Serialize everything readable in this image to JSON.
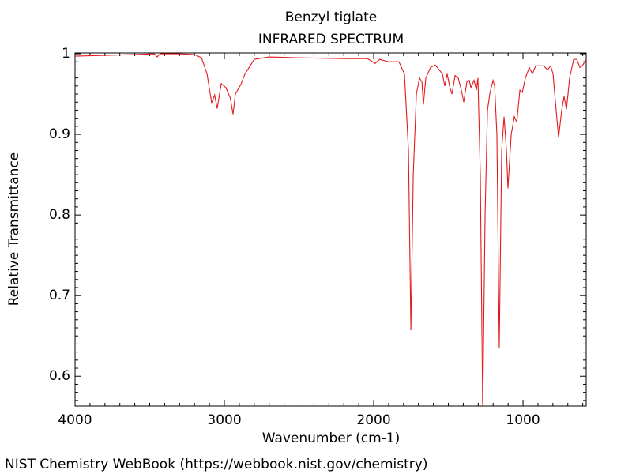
{
  "chart_data": {
    "type": "line",
    "title": "Benzyl tiglate",
    "subtitle": "INFRARED SPECTRUM",
    "x_label": "Wavenumber (cm-1)",
    "y_label": "Relative Transmittance",
    "source": "NIST Chemistry WebBook (https://webbook.nist.gov/chemistry)",
    "xlim": [
      4000,
      577
    ],
    "ylim": [
      0.563,
      1.001
    ],
    "xticks": [
      4000,
      3000,
      2000,
      1000
    ],
    "yticks": [
      0.6,
      0.7,
      0.8,
      0.9,
      1
    ],
    "series": [
      {
        "name": "Benzyl tiglate",
        "color": "#e31a1c",
        "x": [
          4000,
          3600,
          3470,
          3450,
          3430,
          3300,
          3200,
          3153,
          3116,
          3085,
          3065,
          3048,
          3021,
          2990,
          2960,
          2942,
          2926,
          2889,
          2862,
          2800,
          2700,
          2500,
          2200,
          2042,
          1990,
          1960,
          1900,
          1831,
          1794,
          1767,
          1751,
          1735,
          1714,
          1693,
          1677,
          1667,
          1651,
          1619,
          1587,
          1561,
          1540,
          1524,
          1508,
          1492,
          1476,
          1455,
          1434,
          1413,
          1397,
          1376,
          1360,
          1349,
          1328,
          1312,
          1302,
          1286,
          1270,
          1254,
          1238,
          1222,
          1201,
          1190,
          1175,
          1159,
          1143,
          1127,
          1111,
          1101,
          1079,
          1058,
          1042,
          1021,
          1005,
          984,
          958,
          937,
          915,
          862,
          836,
          815,
          799,
          783,
          762,
          741,
          725,
          709,
          688,
          661,
          640,
          619,
          603,
          577
        ],
        "values": [
          0.997,
          0.999,
          1.0,
          0.996,
          1.0,
          1.0,
          0.999,
          0.995,
          0.975,
          0.939,
          0.949,
          0.932,
          0.963,
          0.958,
          0.945,
          0.925,
          0.95,
          0.962,
          0.975,
          0.993,
          0.996,
          0.995,
          0.994,
          0.994,
          0.988,
          0.993,
          0.99,
          0.99,
          0.975,
          0.88,
          0.657,
          0.85,
          0.95,
          0.97,
          0.965,
          0.937,
          0.97,
          0.983,
          0.986,
          0.98,
          0.975,
          0.96,
          0.975,
          0.96,
          0.95,
          0.973,
          0.97,
          0.955,
          0.94,
          0.965,
          0.967,
          0.958,
          0.967,
          0.955,
          0.97,
          0.85,
          0.558,
          0.8,
          0.93,
          0.951,
          0.967,
          0.96,
          0.9,
          0.635,
          0.88,
          0.922,
          0.88,
          0.833,
          0.9,
          0.922,
          0.915,
          0.955,
          0.952,
          0.97,
          0.983,
          0.975,
          0.985,
          0.985,
          0.98,
          0.985,
          0.975,
          0.94,
          0.896,
          0.93,
          0.947,
          0.931,
          0.97,
          0.993,
          0.993,
          0.983,
          0.985,
          0.993
        ]
      }
    ]
  }
}
